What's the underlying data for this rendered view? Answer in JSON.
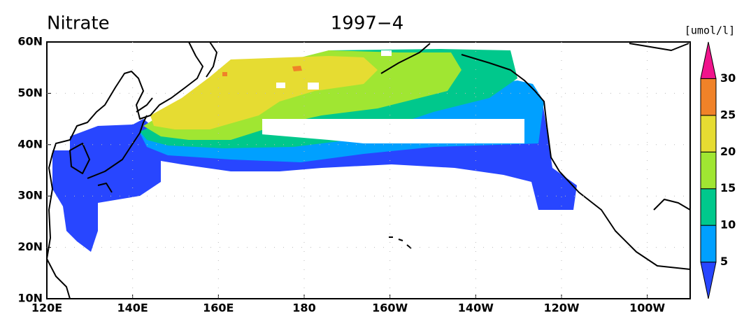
{
  "title": {
    "variable": "Nitrate",
    "date": "1997−4"
  },
  "axes": {
    "y_labels": [
      "60N",
      "50N",
      "40N",
      "30N",
      "20N",
      "10N"
    ],
    "x_labels": [
      "120E",
      "140E",
      "160E",
      "180",
      "160W",
      "140W",
      "120W",
      "100W"
    ]
  },
  "colorbar": {
    "unit": "[umol/l]",
    "labels": [
      5,
      10,
      15,
      20,
      25,
      30
    ],
    "colors": [
      "#2846ff",
      "#00a0ff",
      "#00c88c",
      "#a0e632",
      "#e6dc32",
      "#f08228",
      "#f0148c"
    ]
  }
}
